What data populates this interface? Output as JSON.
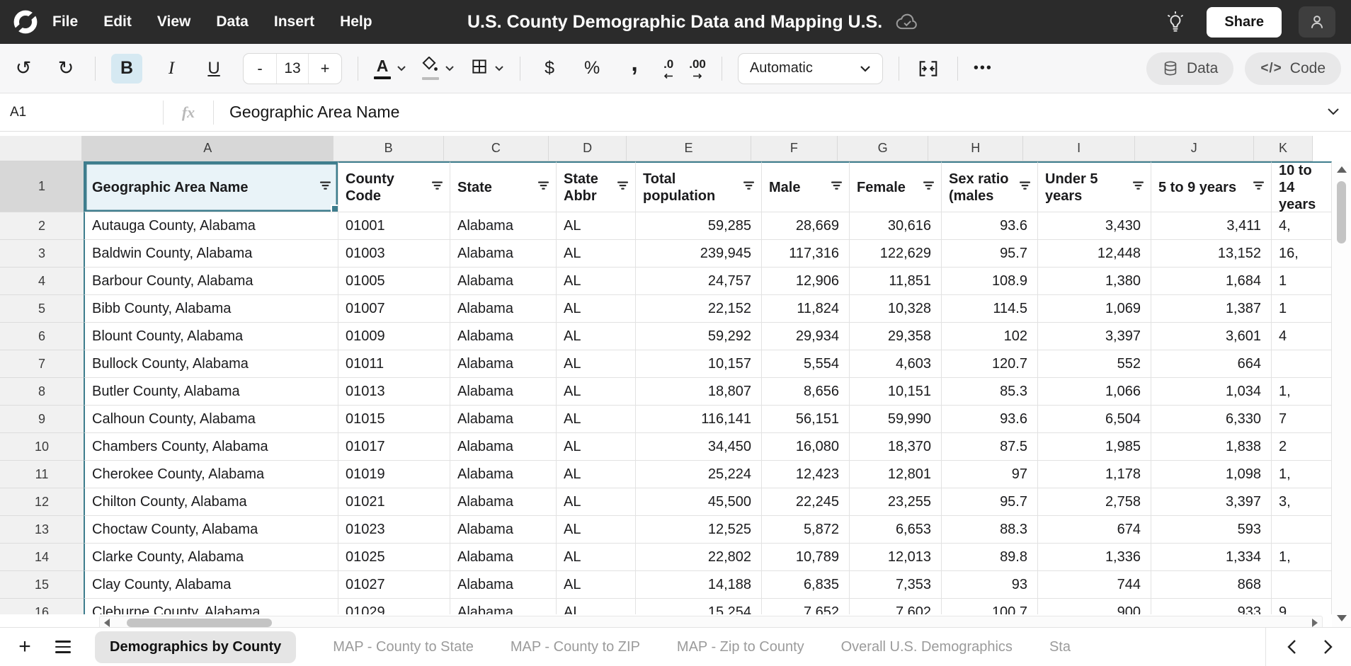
{
  "topbar": {
    "menu_items": [
      "File",
      "Edit",
      "View",
      "Data",
      "Insert",
      "Help"
    ],
    "title": "U.S. County Demographic Data and Mapping U.S.",
    "share_label": "Share"
  },
  "toolbar": {
    "bold": "B",
    "italic": "I",
    "underline": "U",
    "size_decrease": "-",
    "font_size": "13",
    "size_increase": "+",
    "color_letter": "A",
    "currency": "$",
    "percent": "%",
    "comma": ",",
    "dec_decrease": ".0",
    "dec_increase": ".00",
    "number_format": "Automatic",
    "more": "•••",
    "data_label": "Data",
    "code_label": "Code",
    "code_glyph": "</>"
  },
  "formula_bar": {
    "cell_ref": "A1",
    "fx": "fx",
    "content": "Geographic Area Name"
  },
  "colors": {
    "accent": "#3E7D8D",
    "selection_fill": "#E9F3F8",
    "topbar": "#2B2B2B"
  },
  "sheet": {
    "column_letters": [
      "A",
      "B",
      "C",
      "D",
      "E",
      "F",
      "G",
      "H",
      "I",
      "J",
      "K"
    ],
    "selected_cell": "A1",
    "selected_column": "A",
    "selected_row": "1",
    "header_row": {
      "num": "1",
      "cells": [
        "Geographic Area Name",
        "County Code",
        "State",
        "State Abbr",
        "Total population",
        "Male",
        "Female",
        "Sex ratio (males",
        "Under 5 years",
        "5 to 9 years",
        "10 to 14 years"
      ]
    },
    "rows": [
      {
        "num": "2",
        "cells": [
          "Autauga County, Alabama",
          "01001",
          "Alabama",
          "AL",
          "59,285",
          "28,669",
          "30,616",
          "93.6",
          "3,430",
          "3,411",
          "4,"
        ]
      },
      {
        "num": "3",
        "cells": [
          "Baldwin County, Alabama",
          "01003",
          "Alabama",
          "AL",
          "239,945",
          "117,316",
          "122,629",
          "95.7",
          "12,448",
          "13,152",
          "16,"
        ]
      },
      {
        "num": "4",
        "cells": [
          "Barbour County, Alabama",
          "01005",
          "Alabama",
          "AL",
          "24,757",
          "12,906",
          "11,851",
          "108.9",
          "1,380",
          "1,684",
          "1"
        ]
      },
      {
        "num": "5",
        "cells": [
          "Bibb County, Alabama",
          "01007",
          "Alabama",
          "AL",
          "22,152",
          "11,824",
          "10,328",
          "114.5",
          "1,069",
          "1,387",
          "1"
        ]
      },
      {
        "num": "6",
        "cells": [
          "Blount County, Alabama",
          "01009",
          "Alabama",
          "AL",
          "59,292",
          "29,934",
          "29,358",
          "102",
          "3,397",
          "3,601",
          "4"
        ]
      },
      {
        "num": "7",
        "cells": [
          "Bullock County, Alabama",
          "01011",
          "Alabama",
          "AL",
          "10,157",
          "5,554",
          "4,603",
          "120.7",
          "552",
          "664",
          ""
        ]
      },
      {
        "num": "8",
        "cells": [
          "Butler County, Alabama",
          "01013",
          "Alabama",
          "AL",
          "18,807",
          "8,656",
          "10,151",
          "85.3",
          "1,066",
          "1,034",
          "1,"
        ]
      },
      {
        "num": "9",
        "cells": [
          "Calhoun County, Alabama",
          "01015",
          "Alabama",
          "AL",
          "116,141",
          "56,151",
          "59,990",
          "93.6",
          "6,504",
          "6,330",
          "7"
        ]
      },
      {
        "num": "10",
        "cells": [
          "Chambers County, Alabama",
          "01017",
          "Alabama",
          "AL",
          "34,450",
          "16,080",
          "18,370",
          "87.5",
          "1,985",
          "1,838",
          "2"
        ]
      },
      {
        "num": "11",
        "cells": [
          "Cherokee County, Alabama",
          "01019",
          "Alabama",
          "AL",
          "25,224",
          "12,423",
          "12,801",
          "97",
          "1,178",
          "1,098",
          "1,"
        ]
      },
      {
        "num": "12",
        "cells": [
          "Chilton County, Alabama",
          "01021",
          "Alabama",
          "AL",
          "45,500",
          "22,245",
          "23,255",
          "95.7",
          "2,758",
          "3,397",
          "3,"
        ]
      },
      {
        "num": "13",
        "cells": [
          "Choctaw County, Alabama",
          "01023",
          "Alabama",
          "AL",
          "12,525",
          "5,872",
          "6,653",
          "88.3",
          "674",
          "593",
          ""
        ]
      },
      {
        "num": "14",
        "cells": [
          "Clarke County, Alabama",
          "01025",
          "Alabama",
          "AL",
          "22,802",
          "10,789",
          "12,013",
          "89.8",
          "1,336",
          "1,334",
          "1,"
        ]
      },
      {
        "num": "15",
        "cells": [
          "Clay County, Alabama",
          "01027",
          "Alabama",
          "AL",
          "14,188",
          "6,835",
          "7,353",
          "93",
          "744",
          "868",
          ""
        ]
      },
      {
        "num": "16",
        "cells": [
          "Cleburne County, Alabama",
          "01029",
          "Alabama",
          "AL",
          "15,254",
          "7,652",
          "7,602",
          "100.7",
          "900",
          "933",
          "9"
        ]
      }
    ]
  },
  "tabbar": {
    "add": "+",
    "tabs": [
      {
        "label": "Demographics by County",
        "active": true
      },
      {
        "label": "MAP - County to State",
        "active": false
      },
      {
        "label": "MAP - County to ZIP",
        "active": false
      },
      {
        "label": "MAP - Zip to County",
        "active": false
      },
      {
        "label": "Overall U.S. Demographics",
        "active": false
      },
      {
        "label": "Sta",
        "active": false,
        "truncated": true
      }
    ]
  }
}
